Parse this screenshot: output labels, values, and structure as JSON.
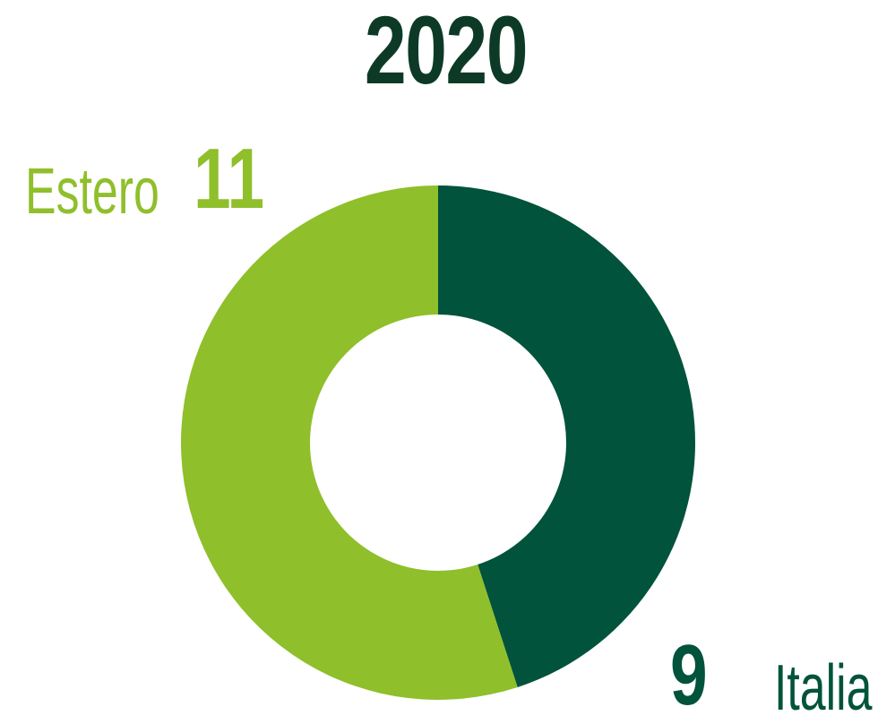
{
  "chart_data": {
    "type": "pie",
    "style": "donut",
    "title": "2020",
    "slices": [
      {
        "label": "Italia",
        "value": 9,
        "color": "#02533b"
      },
      {
        "label": "Estero",
        "value": 11,
        "color": "#8fbf2b"
      }
    ],
    "legend": "none",
    "grid": false
  }
}
